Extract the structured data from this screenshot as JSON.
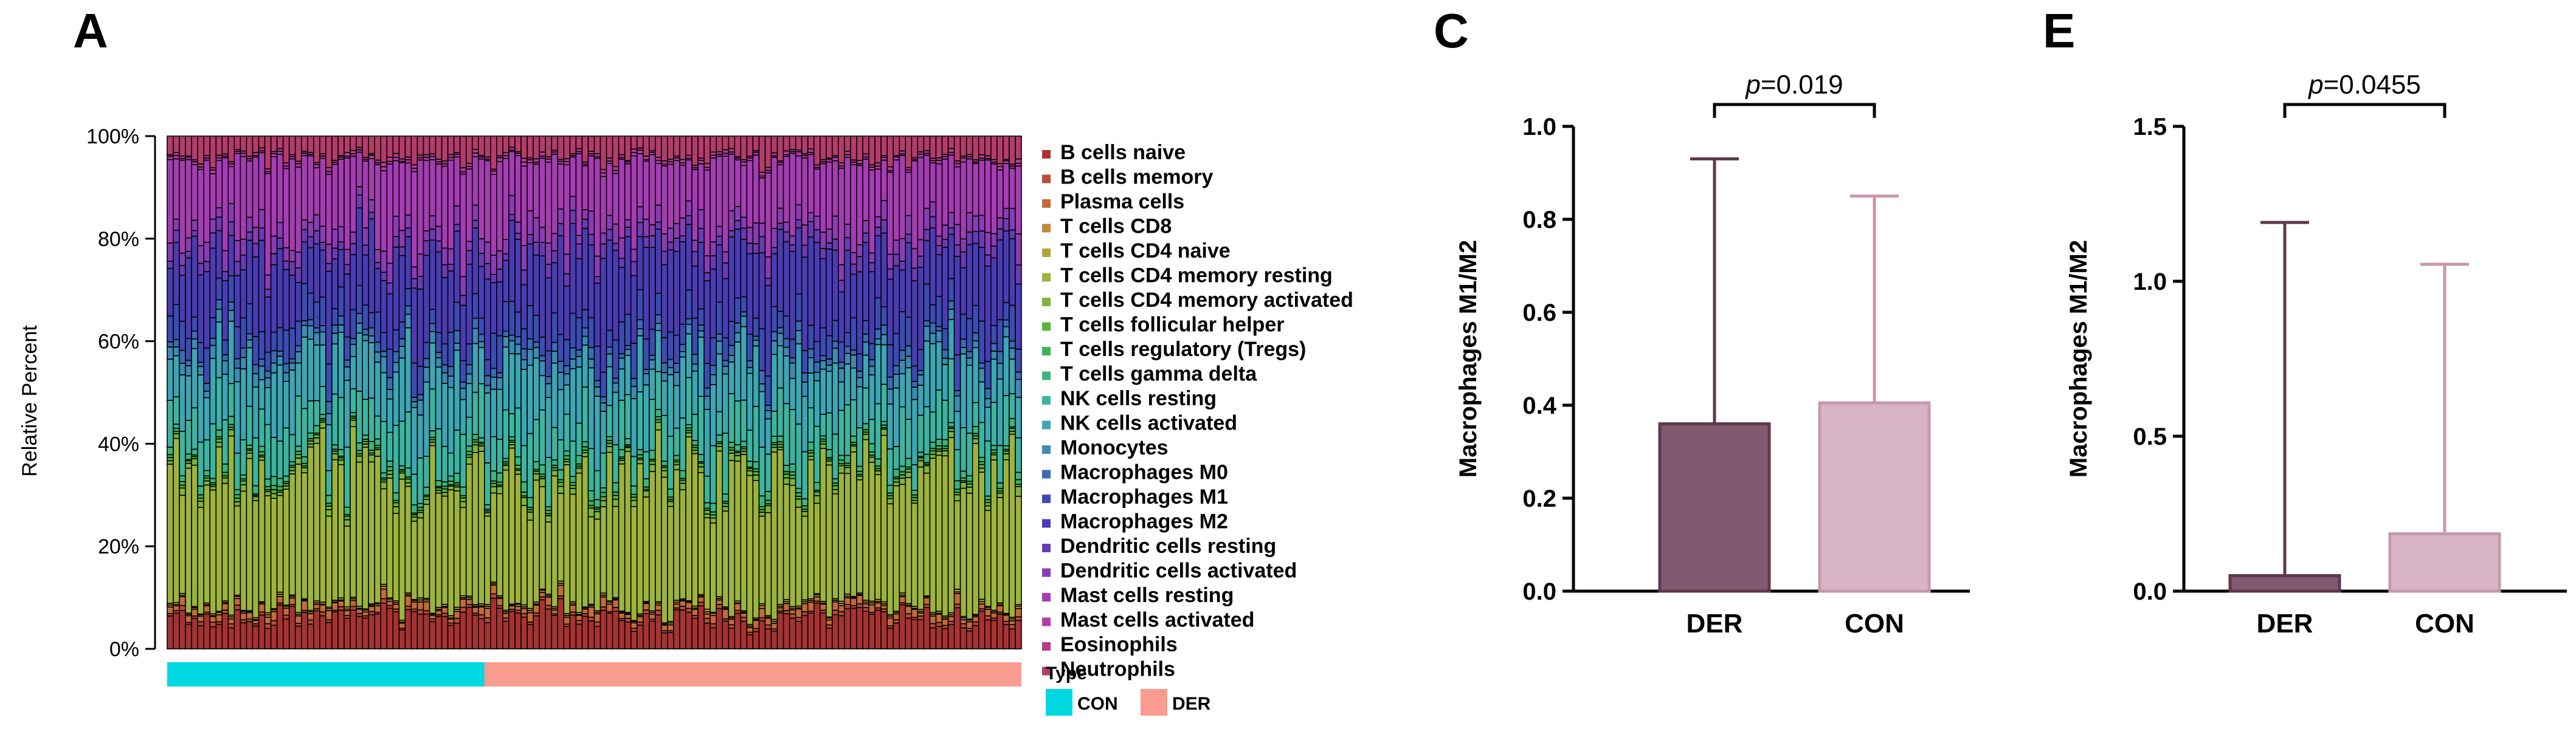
{
  "panels": {
    "A": "A",
    "C": "C",
    "E": "E"
  },
  "colors": {
    "con": "#00d7e0",
    "der": "#fa9b8f",
    "bar_der": "#825a70",
    "bar_der_edge": "#5e3a4e",
    "bar_con": "#d9b4c6",
    "bar_con_edge": "#c698ae"
  },
  "chart_data": [
    {
      "type": "bar",
      "subtype": "stacked-100-percent",
      "panel": "A",
      "ylabel": "Relative Percent",
      "yticks": [
        "0%",
        "20%",
        "40%",
        "60%",
        "80%",
        "100%"
      ],
      "ylim": [
        0,
        100
      ],
      "n_samples": 140,
      "n_con": 52,
      "categories": [
        "B cells naive",
        "B cells memory",
        "Plasma cells",
        "T cells CD8",
        "T cells CD4 naive",
        "T cells CD4 memory resting",
        "T cells CD4 memory activated",
        "T cells follicular helper",
        "T cells regulatory (Tregs)",
        "T cells gamma delta",
        "NK cells resting",
        "NK cells activated",
        "Monocytes",
        "Macrophages M0",
        "Macrophages M1",
        "Macrophages M2",
        "Dendritic cells resting",
        "Dendritic cells activated",
        "Mast cells resting",
        "Mast cells activated",
        "Eosinophils",
        "Neutrophils"
      ],
      "series_colors": [
        "#a83232",
        "#bb4a36",
        "#c46a3a",
        "#c3893a",
        "#b4a43c",
        "#9cb43c",
        "#7eb43c",
        "#5ab43c",
        "#3cb456",
        "#3cb47e",
        "#3cb4a0",
        "#3ca6b4",
        "#3c8cb4",
        "#3c6cb4",
        "#3c4cb4",
        "#4a3cb4",
        "#6a3cb4",
        "#8a3cb4",
        "#a63cb4",
        "#b43ca6",
        "#b43c8a",
        "#b43c6a"
      ],
      "base_composition": [
        6,
        0.6,
        1.2,
        0.3,
        0.3,
        25,
        1,
        0.5,
        0.5,
        1.2,
        8,
        10,
        2,
        1.5,
        5,
        13,
        2,
        3,
        13,
        0.5,
        0.5,
        4
      ],
      "annotation_bar": {
        "label": "Type",
        "groups": [
          "CON",
          "DER"
        ]
      }
    },
    {
      "type": "bar",
      "panel": "C",
      "categories": [
        "DER",
        "CON"
      ],
      "values": [
        0.36,
        0.405
      ],
      "error_upper": [
        0.93,
        0.85
      ],
      "ylabel": "Macrophages M1/M2",
      "ylim": [
        0,
        1.0
      ],
      "yticks": [
        "0.0",
        "0.2",
        "0.4",
        "0.6",
        "0.8",
        "1.0"
      ],
      "p_label": "p",
      "p_value": "=0.019"
    },
    {
      "type": "bar",
      "panel": "E",
      "categories": [
        "DER",
        "CON"
      ],
      "values": [
        0.05,
        0.185
      ],
      "error_upper": [
        1.19,
        1.055
      ],
      "ylabel": "Macrophages M1/M2",
      "ylim": [
        0,
        1.5
      ],
      "yticks": [
        "0.0",
        "0.5",
        "1.0",
        "1.5"
      ],
      "p_label": "p",
      "p_value": "=0.0455"
    }
  ]
}
